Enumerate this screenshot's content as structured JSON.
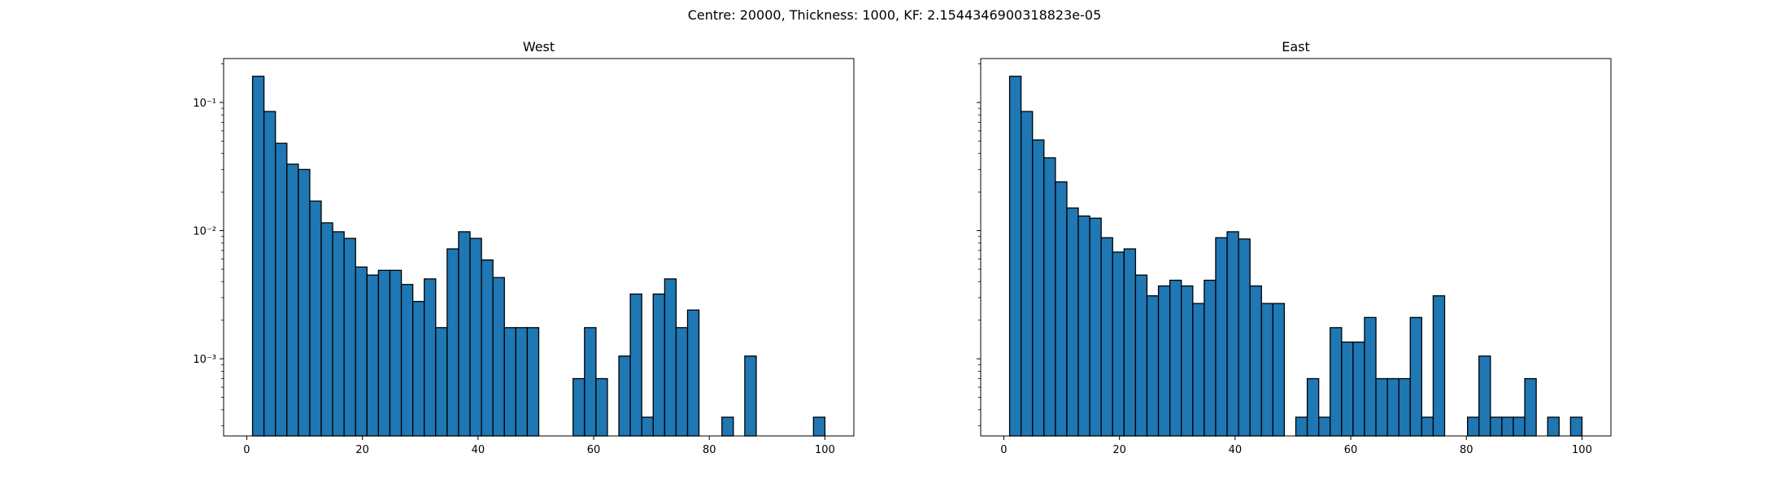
{
  "figure_title": "Centre: 20000, Thickness: 1000, KF: 2.1544346900318823e-05",
  "colors": {
    "bar_fill": "#1f77b4",
    "bar_edge": "#000000",
    "axes": "#000000"
  },
  "chart_data": [
    {
      "type": "bar",
      "subtype": "histogram",
      "title": "West",
      "xlabel": "",
      "ylabel": "",
      "yscale": "log",
      "xlim": [
        -4,
        105
      ],
      "ylim": [
        0.00025,
        0.22
      ],
      "xticks": [
        0,
        20,
        40,
        60,
        80,
        100
      ],
      "xtick_labels": [
        "0",
        "20",
        "40",
        "60",
        "80",
        "100"
      ],
      "yticks": [
        0.001,
        0.01,
        0.1
      ],
      "ytick_labels": [
        "10⁻³",
        "10⁻²",
        "10⁻¹"
      ],
      "bin_start": 1,
      "bin_width": 1.98,
      "values": [
        0.16,
        0.085,
        0.048,
        0.033,
        0.03,
        0.017,
        0.0115,
        0.0098,
        0.0087,
        0.0052,
        0.0045,
        0.0049,
        0.0049,
        0.0038,
        0.0028,
        0.0042,
        0.00175,
        0.0072,
        0.0098,
        0.0087,
        0.0059,
        0.0043,
        0.00175,
        0.00175,
        0.00175,
        0,
        0,
        0,
        0.0007,
        0.00175,
        0.0007,
        0,
        0.00105,
        0.0032,
        0.00035,
        0.0032,
        0.0042,
        0.00175,
        0.0024,
        0,
        0,
        0.00035,
        0,
        0.00105,
        0,
        0,
        0,
        0,
        0,
        0.00035
      ],
      "grid": false,
      "legend": false
    },
    {
      "type": "bar",
      "subtype": "histogram",
      "title": "East",
      "xlabel": "",
      "ylabel": "",
      "yscale": "log",
      "xlim": [
        -4,
        105
      ],
      "ylim": [
        0.00025,
        0.22
      ],
      "xticks": [
        0,
        20,
        40,
        60,
        80,
        100
      ],
      "xtick_labels": [
        "0",
        "20",
        "40",
        "60",
        "80",
        "100"
      ],
      "yticks": [
        0.001,
        0.01,
        0.1
      ],
      "ytick_labels": [
        "",
        "",
        ""
      ],
      "bin_start": 1,
      "bin_width": 1.98,
      "values": [
        0.16,
        0.085,
        0.051,
        0.037,
        0.024,
        0.015,
        0.013,
        0.0125,
        0.0088,
        0.0068,
        0.0072,
        0.0045,
        0.0031,
        0.0037,
        0.0041,
        0.0037,
        0.0027,
        0.0041,
        0.0088,
        0.0098,
        0.0086,
        0.0037,
        0.0027,
        0.0027,
        0,
        0.00035,
        0.0007,
        0.00035,
        0.00175,
        0.00135,
        0.00135,
        0.0021,
        0.0007,
        0.0007,
        0.0007,
        0.0021,
        0.00035,
        0.0031,
        0,
        0,
        0.00035,
        0.00105,
        0.00035,
        0.00035,
        0.00035,
        0.0007,
        0,
        0.00035,
        0,
        0.00035
      ],
      "grid": false,
      "legend": false
    }
  ]
}
